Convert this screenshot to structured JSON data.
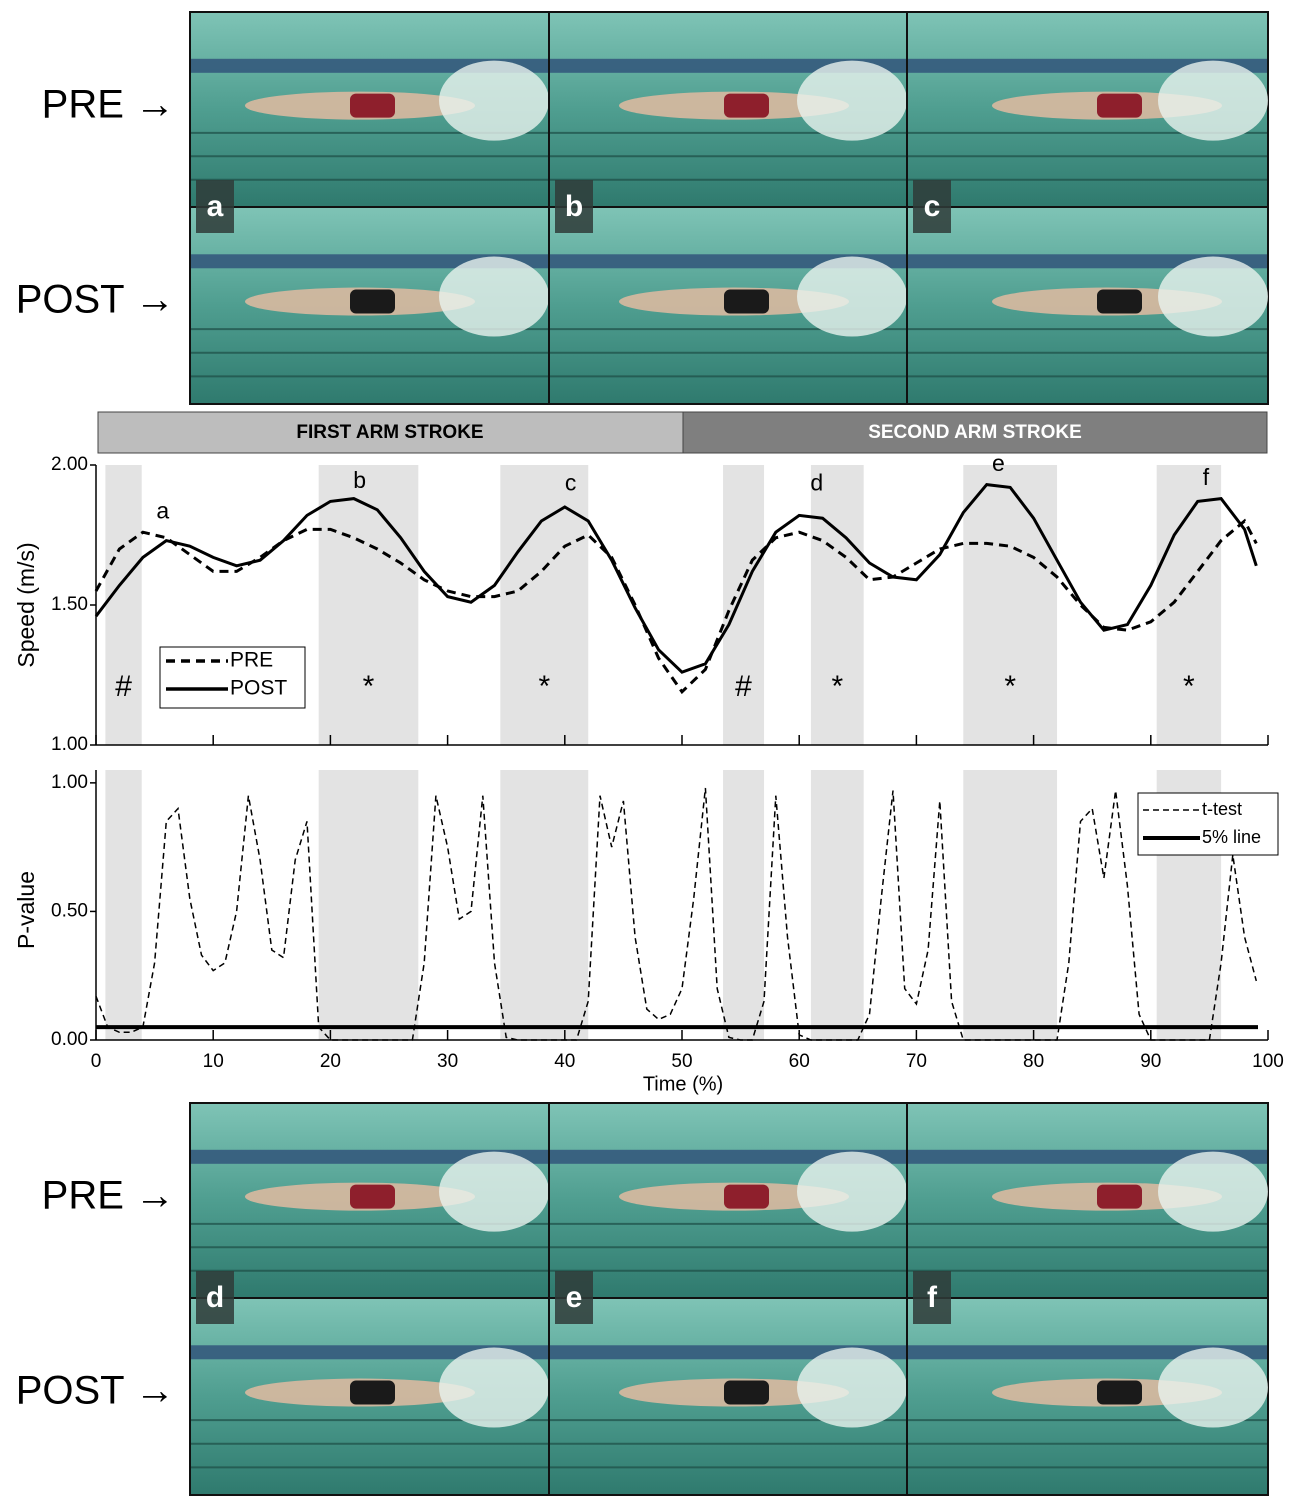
{
  "photo_panels": [
    {
      "row_labels": [
        "PRE →",
        "POST →"
      ],
      "frame_labels": [
        "a",
        "b",
        "c"
      ]
    },
    {
      "row_labels": [
        "PRE →",
        "POST →"
      ],
      "frame_labels": [
        "d",
        "e",
        "f"
      ]
    }
  ],
  "stroke_phases": [
    "FIRST ARM STROKE",
    "SECOND ARM STROKE"
  ],
  "chart_data": [
    {
      "type": "line",
      "y_label": "Speed (m/s)",
      "x": [
        0,
        2,
        4,
        6,
        8,
        10,
        12,
        14,
        16,
        18,
        20,
        22,
        24,
        26,
        28,
        30,
        32,
        34,
        36,
        38,
        40,
        42,
        44,
        46,
        48,
        50,
        52,
        54,
        56,
        58,
        60,
        62,
        64,
        66,
        68,
        70,
        72,
        74,
        76,
        78,
        80,
        82,
        84,
        86,
        88,
        90,
        92,
        94,
        96,
        98,
        99
      ],
      "series": [
        {
          "name": "PRE",
          "color": "#000000",
          "dash": "dashed",
          "values": [
            1.55,
            1.7,
            1.76,
            1.74,
            1.68,
            1.62,
            1.62,
            1.67,
            1.73,
            1.77,
            1.77,
            1.74,
            1.7,
            1.65,
            1.59,
            1.55,
            1.53,
            1.53,
            1.55,
            1.62,
            1.71,
            1.75,
            1.67,
            1.5,
            1.31,
            1.19,
            1.27,
            1.48,
            1.66,
            1.74,
            1.76,
            1.73,
            1.67,
            1.59,
            1.6,
            1.65,
            1.7,
            1.72,
            1.72,
            1.71,
            1.67,
            1.6,
            1.5,
            1.42,
            1.41,
            1.44,
            1.51,
            1.62,
            1.73,
            1.8,
            1.72
          ]
        },
        {
          "name": "POST",
          "color": "#000000",
          "dash": "solid",
          "values": [
            1.46,
            1.57,
            1.67,
            1.73,
            1.71,
            1.67,
            1.64,
            1.66,
            1.73,
            1.82,
            1.87,
            1.88,
            1.84,
            1.74,
            1.62,
            1.53,
            1.51,
            1.57,
            1.69,
            1.8,
            1.85,
            1.8,
            1.66,
            1.49,
            1.34,
            1.26,
            1.29,
            1.43,
            1.62,
            1.76,
            1.82,
            1.81,
            1.74,
            1.65,
            1.6,
            1.59,
            1.68,
            1.83,
            1.93,
            1.92,
            1.81,
            1.66,
            1.51,
            1.41,
            1.43,
            1.57,
            1.75,
            1.87,
            1.88,
            1.77,
            1.64
          ]
        }
      ],
      "xlim": [
        0,
        100
      ],
      "ylim": [
        1,
        2
      ],
      "yticks": [
        {
          "value": 1,
          "label": "1.00"
        },
        {
          "value": 1.5,
          "label": "1.50"
        },
        {
          "value": 2,
          "label": "2.00"
        }
      ],
      "shaded_spans": [
        [
          0.8,
          3.9
        ],
        [
          19,
          27.5
        ],
        [
          34.5,
          42
        ],
        [
          53.5,
          57
        ],
        [
          61,
          65.5
        ],
        [
          74,
          82
        ],
        [
          90.5,
          96
        ]
      ],
      "span_marks": [
        "#",
        "*",
        "*",
        "#",
        "*",
        "*",
        "*"
      ],
      "annotations": [
        {
          "text": "a",
          "x": 5.7,
          "y": 1.83
        },
        {
          "text": "b",
          "x": 22.5,
          "y": 1.94
        },
        {
          "text": "c",
          "x": 40.5,
          "y": 1.93
        },
        {
          "text": "d",
          "x": 61.5,
          "y": 1.93
        },
        {
          "text": "e",
          "x": 77,
          "y": 2.0
        },
        {
          "text": "f",
          "x": 94.7,
          "y": 1.95
        }
      ],
      "legend": "lower left"
    },
    {
      "type": "line",
      "y_label": "P-value",
      "x_label": "Time (%)",
      "x": [
        0,
        1,
        2,
        3,
        4,
        5,
        6,
        7,
        8,
        9,
        10,
        11,
        12,
        13,
        14,
        15,
        16,
        17,
        18,
        19,
        20,
        21,
        22,
        23,
        24,
        25,
        26,
        27,
        28,
        29,
        30,
        31,
        32,
        33,
        34,
        35,
        36,
        37,
        38,
        39,
        40,
        41,
        42,
        43,
        44,
        45,
        46,
        47,
        48,
        49,
        50,
        51,
        52,
        53,
        54,
        55,
        56,
        57,
        58,
        59,
        60,
        61,
        62,
        63,
        64,
        65,
        66,
        67,
        68,
        69,
        70,
        71,
        72,
        73,
        74,
        75,
        76,
        77,
        78,
        79,
        80,
        81,
        82,
        83,
        84,
        85,
        86,
        87,
        88,
        89,
        90,
        91,
        92,
        93,
        94,
        95,
        96,
        97,
        98,
        99
      ],
      "series": [
        {
          "name": "t-test",
          "color": "#000000",
          "dash": "dashed",
          "values": [
            0.17,
            0.05,
            0.03,
            0.03,
            0.05,
            0.3,
            0.85,
            0.9,
            0.55,
            0.33,
            0.27,
            0.3,
            0.5,
            0.95,
            0.7,
            0.35,
            0.32,
            0.7,
            0.85,
            0.05,
            0,
            0,
            0,
            0,
            0,
            0,
            0,
            0,
            0.3,
            0.95,
            0.75,
            0.47,
            0.5,
            0.95,
            0.3,
            0.01,
            0,
            0,
            0,
            0,
            0,
            0,
            0.15,
            0.95,
            0.75,
            0.93,
            0.4,
            0.12,
            0.08,
            0.1,
            0.2,
            0.55,
            0.98,
            0.2,
            0.01,
            0,
            0,
            0.15,
            0.95,
            0.4,
            0.02,
            0,
            0,
            0,
            0,
            0,
            0.1,
            0.55,
            0.97,
            0.2,
            0.14,
            0.35,
            0.93,
            0.15,
            0,
            0,
            0,
            0,
            0,
            0,
            0,
            0,
            0,
            0.3,
            0.85,
            0.9,
            0.63,
            0.97,
            0.6,
            0.1,
            0,
            0,
            0,
            0,
            0,
            0,
            0.3,
            0.72,
            0.4,
            0.23
          ]
        }
      ],
      "reference_lines": [
        {
          "name": "5% line",
          "value": 0.05,
          "color": "#000000"
        }
      ],
      "xlim": [
        0,
        100
      ],
      "ylim": [
        0,
        1.05
      ],
      "xticks": [
        0,
        10,
        20,
        30,
        40,
        50,
        60,
        70,
        80,
        90,
        100
      ],
      "yticks": [
        {
          "value": 0,
          "label": "0.00"
        },
        {
          "value": 0.5,
          "label": "0.50"
        },
        {
          "value": 1,
          "label": "1.00"
        }
      ],
      "shaded_spans": [
        [
          0.8,
          3.9
        ],
        [
          19,
          27.5
        ],
        [
          34.5,
          42
        ],
        [
          53.5,
          57
        ],
        [
          61,
          65.5
        ],
        [
          74,
          82
        ],
        [
          90.5,
          96
        ]
      ],
      "legend": "upper right"
    }
  ]
}
